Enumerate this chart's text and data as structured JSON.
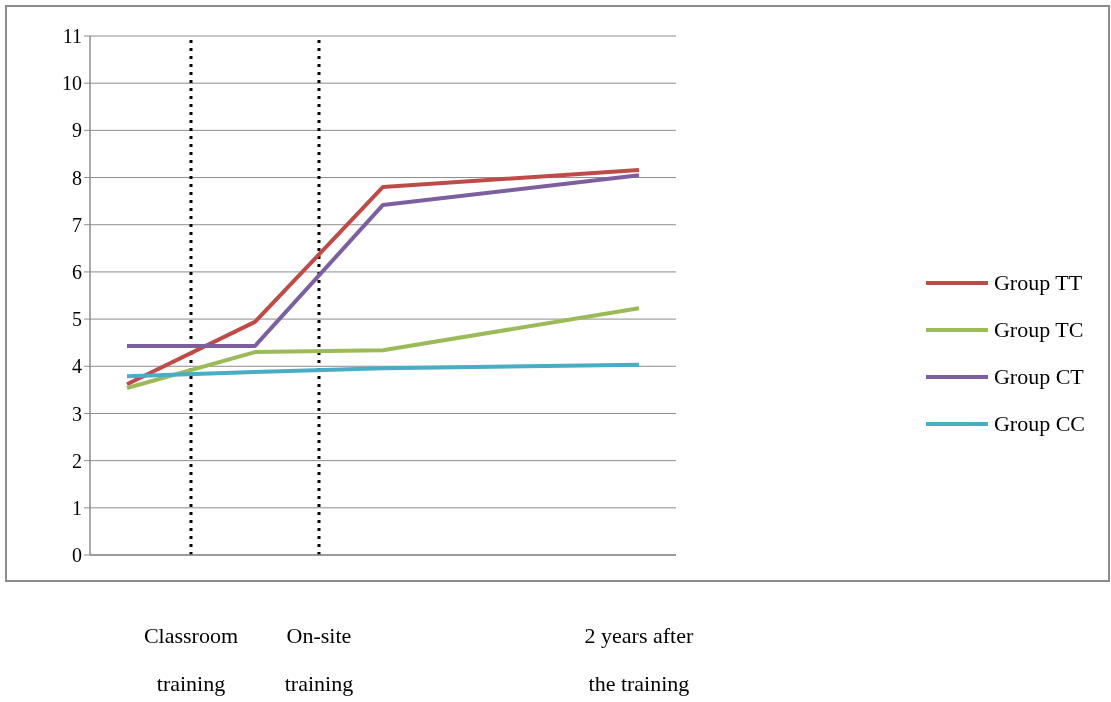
{
  "chart_data": {
    "type": "line",
    "categories": [
      null,
      "Classroom training",
      null,
      "On-site training",
      null,
      null,
      null,
      null,
      "2 years after the training"
    ],
    "ylim": [
      0,
      11
    ],
    "yticks": [
      0,
      1,
      2,
      3,
      4,
      5,
      6,
      7,
      8,
      9,
      10,
      11
    ],
    "grid": "y",
    "legend": "right",
    "marker": "none",
    "line_style": "solid",
    "series": [
      {
        "name": "Group TT",
        "color": "#be4b48",
        "values": [
          3.62,
          null,
          4.94,
          null,
          7.8,
          null,
          null,
          null,
          8.16
        ]
      },
      {
        "name": "Group TC",
        "color": "#9bbb59",
        "values": [
          3.54,
          null,
          4.3,
          null,
          4.34,
          null,
          null,
          null,
          5.23
        ]
      },
      {
        "name": "Group CT",
        "color": "#7d5fa0",
        "values": [
          4.43,
          null,
          4.43,
          null,
          7.42,
          null,
          null,
          null,
          8.05
        ]
      },
      {
        "name": "Group CC",
        "color": "#4bacc6",
        "values": [
          3.79,
          null,
          3.88,
          null,
          3.96,
          null,
          null,
          null,
          4.03
        ]
      }
    ],
    "ref_lines": [
      {
        "axis": "x",
        "value": "Classroom training",
        "color": "#000000",
        "line_style": "dotted"
      },
      {
        "axis": "x",
        "value": "On-site training",
        "color": "#000000",
        "line_style": "dotted"
      }
    ]
  }
}
